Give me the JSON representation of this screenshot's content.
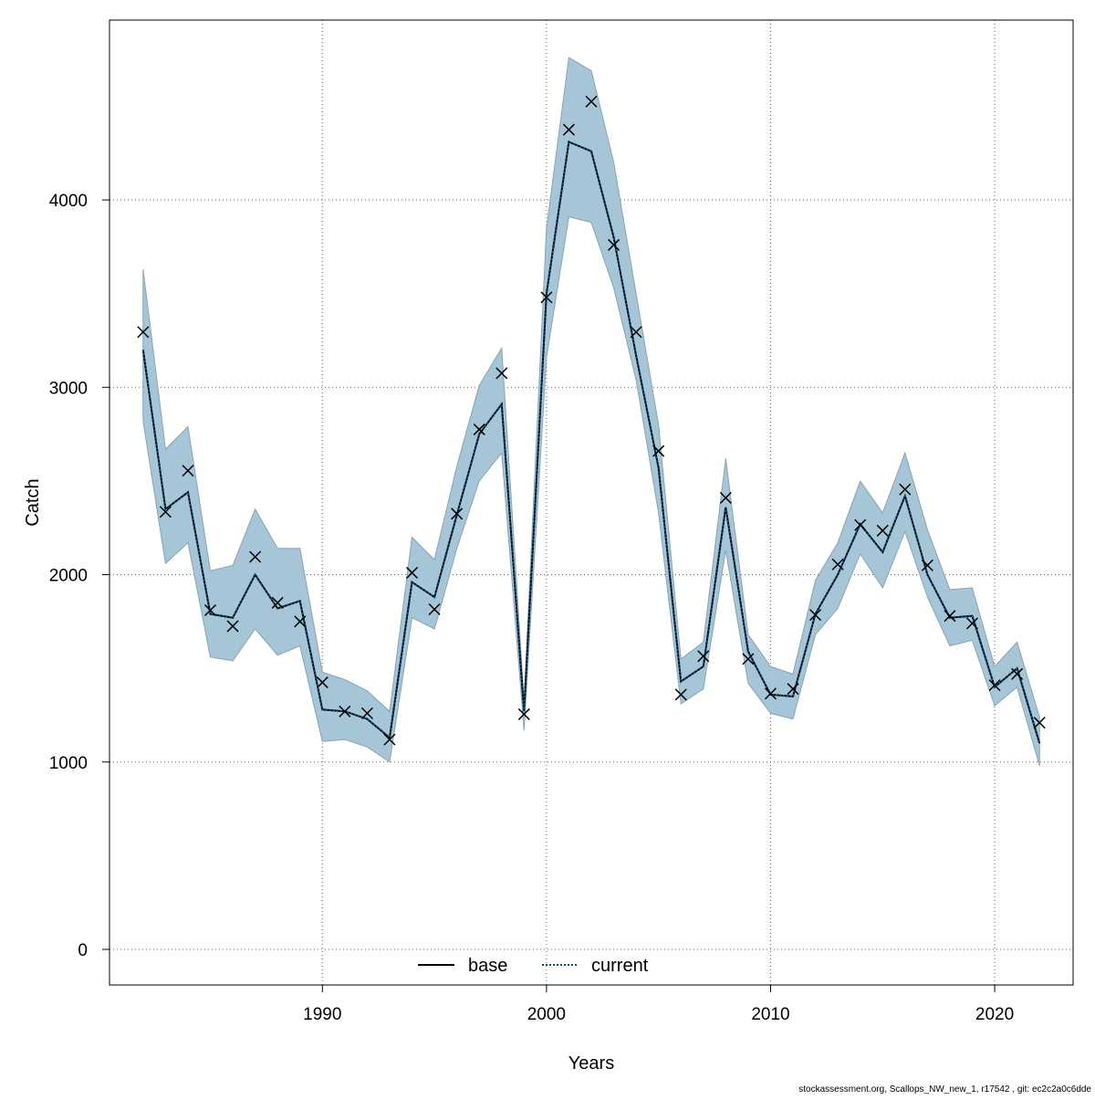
{
  "chart_data": {
    "type": "line",
    "title": "",
    "xlabel": "Years",
    "ylabel": "Catch",
    "xlim": [
      1980.5,
      2023.5
    ],
    "ylim": [
      -190,
      4960
    ],
    "xticks": [
      1990,
      2000,
      2010,
      2020
    ],
    "yticks": [
      0,
      1000,
      2000,
      3000,
      4000
    ],
    "grid": true,
    "legend_position": "bottom",
    "years": [
      1982,
      1983,
      1984,
      1985,
      1986,
      1987,
      1988,
      1989,
      1990,
      1991,
      1992,
      1993,
      1994,
      1995,
      1996,
      1997,
      1998,
      1999,
      2000,
      2001,
      2002,
      2003,
      2004,
      2005,
      2006,
      2007,
      2008,
      2009,
      2010,
      2011,
      2012,
      2013,
      2014,
      2015,
      2016,
      2017,
      2018,
      2019,
      2020,
      2021,
      2022
    ],
    "observed": [
      3295,
      2335,
      2555,
      1810,
      1725,
      2095,
      1850,
      1750,
      1425,
      1270,
      1260,
      1120,
      2010,
      1815,
      2325,
      2775,
      3075,
      1255,
      3480,
      4375,
      4525,
      3760,
      3295,
      2660,
      1360,
      1565,
      2410,
      1550,
      1365,
      1390,
      1785,
      2055,
      2265,
      2235,
      2455,
      2050,
      1780,
      1740,
      1410,
      1470,
      1210
    ],
    "series": [
      {
        "name": "base",
        "color": "#000000",
        "values": [
          3200,
          2350,
          2440,
          1790,
          1770,
          2000,
          1820,
          1860,
          1280,
          1270,
          1230,
          1130,
          1960,
          1880,
          2320,
          2750,
          2910,
          1270,
          3500,
          4310,
          4260,
          3800,
          3170,
          2570,
          1430,
          1510,
          2360,
          1590,
          1360,
          1350,
          1790,
          2000,
          2270,
          2120,
          2420,
          2000,
          1770,
          1780,
          1400,
          1500,
          1100
        ]
      },
      {
        "name": "current",
        "color": "#1f78b4",
        "values": [
          3200,
          2350,
          2440,
          1790,
          1770,
          2000,
          1820,
          1860,
          1280,
          1270,
          1230,
          1130,
          1960,
          1880,
          2320,
          2750,
          2910,
          1270,
          3500,
          4310,
          4260,
          3800,
          3170,
          2570,
          1430,
          1510,
          2360,
          1590,
          1360,
          1350,
          1790,
          2000,
          2270,
          2120,
          2420,
          2000,
          1770,
          1780,
          1400,
          1500,
          1100
        ]
      }
    ],
    "band": {
      "color": "#a6c5d6",
      "upper": [
        3630,
        2670,
        2790,
        2020,
        2050,
        2350,
        2140,
        2140,
        1480,
        1440,
        1380,
        1270,
        2200,
        2080,
        2580,
        3010,
        3210,
        1330,
        3850,
        4760,
        4690,
        4200,
        3500,
        2800,
        1550,
        1640,
        2620,
        1680,
        1510,
        1470,
        1970,
        2170,
        2500,
        2330,
        2650,
        2240,
        1920,
        1930,
        1510,
        1640,
        1240
      ],
      "lower": [
        2820,
        2060,
        2170,
        1560,
        1540,
        1710,
        1570,
        1620,
        1110,
        1120,
        1080,
        1000,
        1770,
        1710,
        2140,
        2500,
        2650,
        1170,
        3160,
        3910,
        3880,
        3530,
        3040,
        2330,
        1310,
        1390,
        2130,
        1420,
        1260,
        1230,
        1680,
        1820,
        2110,
        1930,
        2230,
        1880,
        1620,
        1650,
        1300,
        1400,
        980
      ]
    }
  },
  "legend": {
    "items": [
      {
        "label": "base",
        "style": "solid",
        "color": "#000000"
      },
      {
        "label": "current",
        "style": "dotted",
        "color": "#1f78b4"
      }
    ]
  },
  "footer": {
    "text": "stockassessment.org, Scallops_NW_new_1, r17542 , git: ec2c2a0c6dde"
  }
}
